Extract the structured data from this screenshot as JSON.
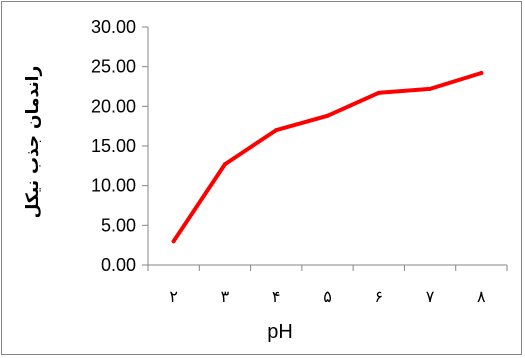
{
  "chart_data": {
    "type": "line",
    "title": "",
    "xlabel": "pH",
    "ylabel": "راندمان جذب نیکل",
    "categories": [
      "۲",
      "۳",
      "۴",
      "۵",
      "۶",
      "۷",
      "۸"
    ],
    "series": [
      {
        "values": [
          3.0,
          12.7,
          17.0,
          18.8,
          21.7,
          22.2,
          24.2
        ],
        "color": "#ff0000"
      }
    ],
    "ylim": [
      0,
      30
    ],
    "yticks": [
      "0.00",
      "5.00",
      "10.00",
      "15.00",
      "20.00",
      "25.00",
      "30.00"
    ],
    "grid": false,
    "legend": "none"
  }
}
